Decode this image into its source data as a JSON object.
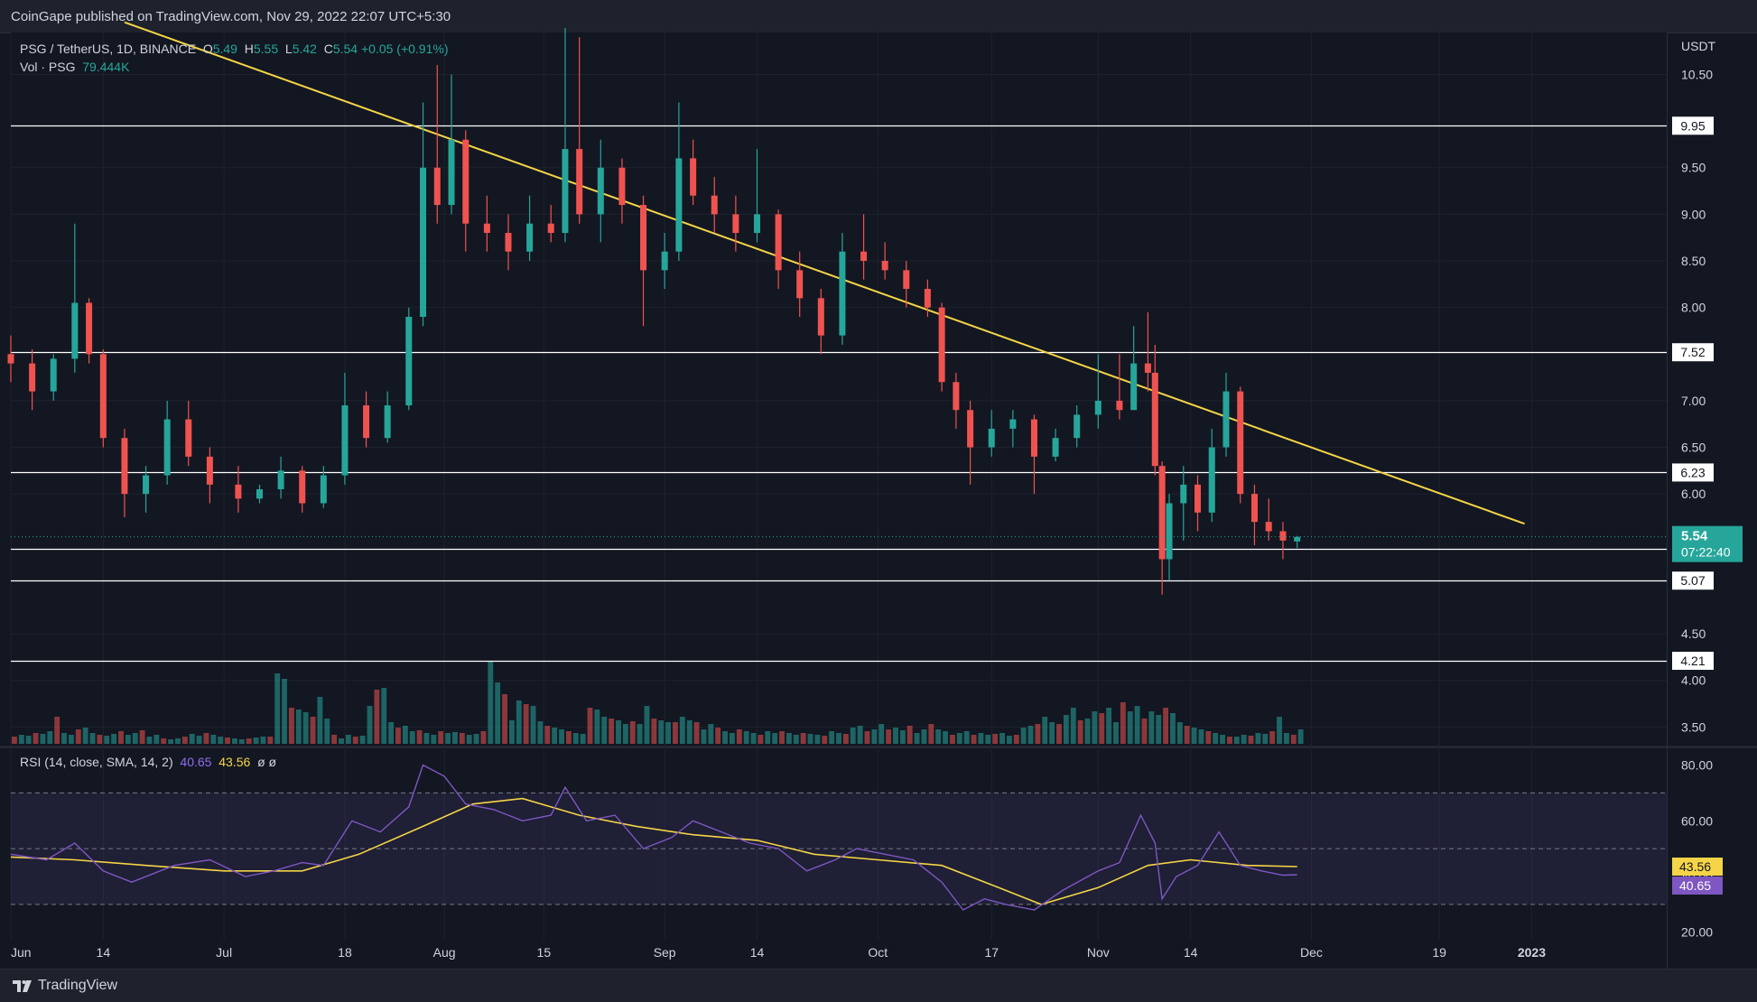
{
  "publisher": "CoinGape published on TradingView.com, Nov 29, 2022 22:07 UTC+5:30",
  "footer": {
    "brand": "TradingView"
  },
  "legend": {
    "symbol": "PSG / TetherUS, 1D, BINANCE",
    "o_label": "O",
    "o": "5.49",
    "h_label": "H",
    "h": "5.55",
    "l_label": "L",
    "l": "5.42",
    "c_label": "C",
    "c": "5.54",
    "change": "+0.05 (+0.91%)",
    "vol_label": "Vol · PSG",
    "vol": "79.444K",
    "rsi_label": "RSI (14, close, SMA, 14, 2)",
    "rsi": "40.65",
    "rsi_sma": "43.56",
    "rsi_extra": "ø  ø"
  },
  "colors": {
    "background": "#131722",
    "up": "#26a69a",
    "down": "#ef5350",
    "trendline": "#f5d547",
    "rsi": "#7e57c2",
    "rsi_sma": "#f5d547",
    "levels": "#ffffff"
  },
  "chart_data": [
    {
      "type": "candlestick",
      "currency": "USDT",
      "price_axis": [
        "10.50",
        "9.50",
        "9.00",
        "8.50",
        "8.00",
        "7.00",
        "6.50",
        "6.00",
        "4.50",
        "4.00",
        "3.50"
      ],
      "ylim": [
        3.3,
        10.95
      ],
      "time_axis": [
        "Jun",
        "14",
        "Jul",
        "18",
        "Aug",
        "15",
        "Sep",
        "14",
        "Oct",
        "17",
        "Nov",
        "14",
        "Dec",
        "19",
        "2023"
      ],
      "horizontal_levels": [
        "9.95",
        "7.52",
        "6.23",
        "5.41",
        "5.07",
        "4.21"
      ],
      "last_price": "5.54",
      "countdown": "07:22:40",
      "descending_trendline": {
        "start": [
          "2022-06-17",
          11.06
        ],
        "end": [
          "2022-12-31",
          5.68
        ]
      },
      "candles": [
        {
          "date": "2022-06-01",
          "o": 7.5,
          "h": 7.7,
          "l": 7.2,
          "c": 7.4
        },
        {
          "date": "2022-06-04",
          "o": 7.4,
          "h": 7.55,
          "l": 6.9,
          "c": 7.1
        },
        {
          "date": "2022-06-07",
          "o": 7.1,
          "h": 7.5,
          "l": 7.0,
          "c": 7.45
        },
        {
          "date": "2022-06-10",
          "o": 7.45,
          "h": 8.9,
          "l": 7.3,
          "c": 8.05
        },
        {
          "date": "2022-06-12",
          "o": 8.05,
          "h": 8.1,
          "l": 7.4,
          "c": 7.5
        },
        {
          "date": "2022-06-14",
          "o": 7.5,
          "h": 7.55,
          "l": 6.5,
          "c": 6.6
        },
        {
          "date": "2022-06-17",
          "o": 6.6,
          "h": 6.7,
          "l": 5.75,
          "c": 6.0
        },
        {
          "date": "2022-06-20",
          "o": 6.0,
          "h": 6.3,
          "l": 5.8,
          "c": 6.2
        },
        {
          "date": "2022-06-23",
          "o": 6.2,
          "h": 7.0,
          "l": 6.1,
          "c": 6.8
        },
        {
          "date": "2022-06-26",
          "o": 6.8,
          "h": 7.0,
          "l": 6.3,
          "c": 6.4
        },
        {
          "date": "2022-06-29",
          "o": 6.4,
          "h": 6.5,
          "l": 5.9,
          "c": 6.1
        },
        {
          "date": "2022-07-03",
          "o": 6.1,
          "h": 6.3,
          "l": 5.8,
          "c": 5.95
        },
        {
          "date": "2022-07-06",
          "o": 5.95,
          "h": 6.1,
          "l": 5.9,
          "c": 6.05
        },
        {
          "date": "2022-07-09",
          "o": 6.05,
          "h": 6.4,
          "l": 5.95,
          "c": 6.25
        },
        {
          "date": "2022-07-12",
          "o": 6.25,
          "h": 6.3,
          "l": 5.8,
          "c": 5.9
        },
        {
          "date": "2022-07-15",
          "o": 5.9,
          "h": 6.3,
          "l": 5.85,
          "c": 6.2
        },
        {
          "date": "2022-07-18",
          "o": 6.2,
          "h": 7.3,
          "l": 6.1,
          "c": 6.95
        },
        {
          "date": "2022-07-21",
          "o": 6.95,
          "h": 7.1,
          "l": 6.5,
          "c": 6.6
        },
        {
          "date": "2022-07-24",
          "o": 6.6,
          "h": 7.1,
          "l": 6.55,
          "c": 6.95
        },
        {
          "date": "2022-07-27",
          "o": 6.95,
          "h": 8.0,
          "l": 6.9,
          "c": 7.9
        },
        {
          "date": "2022-07-29",
          "o": 7.9,
          "h": 10.2,
          "l": 7.8,
          "c": 9.5
        },
        {
          "date": "2022-07-31",
          "o": 9.5,
          "h": 10.6,
          "l": 8.9,
          "c": 9.1
        },
        {
          "date": "2022-08-02",
          "o": 9.1,
          "h": 10.5,
          "l": 9.0,
          "c": 9.8
        },
        {
          "date": "2022-08-04",
          "o": 9.8,
          "h": 9.9,
          "l": 8.6,
          "c": 8.9
        },
        {
          "date": "2022-08-07",
          "o": 8.9,
          "h": 9.2,
          "l": 8.6,
          "c": 8.8
        },
        {
          "date": "2022-08-10",
          "o": 8.8,
          "h": 9.0,
          "l": 8.4,
          "c": 8.6
        },
        {
          "date": "2022-08-13",
          "o": 8.6,
          "h": 9.2,
          "l": 8.5,
          "c": 8.9
        },
        {
          "date": "2022-08-16",
          "o": 8.9,
          "h": 9.1,
          "l": 8.7,
          "c": 8.8
        },
        {
          "date": "2022-08-18",
          "o": 8.8,
          "h": 11.0,
          "l": 8.7,
          "c": 9.7
        },
        {
          "date": "2022-08-20",
          "o": 9.7,
          "h": 10.9,
          "l": 8.9,
          "c": 9.0
        },
        {
          "date": "2022-08-23",
          "o": 9.0,
          "h": 9.8,
          "l": 8.7,
          "c": 9.5
        },
        {
          "date": "2022-08-26",
          "o": 9.5,
          "h": 9.6,
          "l": 8.9,
          "c": 9.1
        },
        {
          "date": "2022-08-29",
          "o": 9.1,
          "h": 9.2,
          "l": 7.8,
          "c": 8.4
        },
        {
          "date": "2022-09-01",
          "o": 8.4,
          "h": 8.8,
          "l": 8.2,
          "c": 8.6
        },
        {
          "date": "2022-09-03",
          "o": 8.6,
          "h": 10.2,
          "l": 8.5,
          "c": 9.6
        },
        {
          "date": "2022-09-05",
          "o": 9.6,
          "h": 9.8,
          "l": 9.1,
          "c": 9.2
        },
        {
          "date": "2022-09-08",
          "o": 9.2,
          "h": 9.4,
          "l": 8.8,
          "c": 9.0
        },
        {
          "date": "2022-09-11",
          "o": 9.0,
          "h": 9.2,
          "l": 8.6,
          "c": 8.8
        },
        {
          "date": "2022-09-14",
          "o": 8.8,
          "h": 9.7,
          "l": 8.7,
          "c": 9.0
        },
        {
          "date": "2022-09-17",
          "o": 9.0,
          "h": 9.05,
          "l": 8.2,
          "c": 8.4
        },
        {
          "date": "2022-09-20",
          "o": 8.4,
          "h": 8.6,
          "l": 7.9,
          "c": 8.1
        },
        {
          "date": "2022-09-23",
          "o": 8.1,
          "h": 8.2,
          "l": 7.5,
          "c": 7.7
        },
        {
          "date": "2022-09-26",
          "o": 7.7,
          "h": 8.8,
          "l": 7.6,
          "c": 8.6
        },
        {
          "date": "2022-09-29",
          "o": 8.6,
          "h": 9.0,
          "l": 8.3,
          "c": 8.5
        },
        {
          "date": "2022-10-02",
          "o": 8.5,
          "h": 8.7,
          "l": 8.3,
          "c": 8.4
        },
        {
          "date": "2022-10-05",
          "o": 8.4,
          "h": 8.5,
          "l": 8.0,
          "c": 8.2
        },
        {
          "date": "2022-10-08",
          "o": 8.2,
          "h": 8.3,
          "l": 7.9,
          "c": 8.0
        },
        {
          "date": "2022-10-10",
          "o": 8.0,
          "h": 8.05,
          "l": 7.1,
          "c": 7.2
        },
        {
          "date": "2022-10-12",
          "o": 7.2,
          "h": 7.3,
          "l": 6.7,
          "c": 6.9
        },
        {
          "date": "2022-10-14",
          "o": 6.9,
          "h": 7.0,
          "l": 6.1,
          "c": 6.5
        },
        {
          "date": "2022-10-17",
          "o": 6.5,
          "h": 6.9,
          "l": 6.4,
          "c": 6.7
        },
        {
          "date": "2022-10-20",
          "o": 6.7,
          "h": 6.9,
          "l": 6.5,
          "c": 6.8
        },
        {
          "date": "2022-10-23",
          "o": 6.8,
          "h": 6.85,
          "l": 6.0,
          "c": 6.4
        },
        {
          "date": "2022-10-26",
          "o": 6.4,
          "h": 6.7,
          "l": 6.35,
          "c": 6.6
        },
        {
          "date": "2022-10-29",
          "o": 6.6,
          "h": 6.95,
          "l": 6.5,
          "c": 6.85
        },
        {
          "date": "2022-11-01",
          "o": 6.85,
          "h": 7.5,
          "l": 6.7,
          "c": 7.0
        },
        {
          "date": "2022-11-04",
          "o": 7.0,
          "h": 7.5,
          "l": 6.8,
          "c": 6.9
        },
        {
          "date": "2022-11-06",
          "o": 6.9,
          "h": 7.8,
          "l": 6.9,
          "c": 7.4
        },
        {
          "date": "2022-11-08",
          "o": 7.4,
          "h": 7.95,
          "l": 7.1,
          "c": 7.3
        },
        {
          "date": "2022-11-09",
          "o": 7.3,
          "h": 7.6,
          "l": 6.2,
          "c": 6.3
        },
        {
          "date": "2022-11-10",
          "o": 6.3,
          "h": 6.35,
          "l": 4.92,
          "c": 5.3
        },
        {
          "date": "2022-11-11",
          "o": 5.3,
          "h": 6.0,
          "l": 5.07,
          "c": 5.9
        },
        {
          "date": "2022-11-13",
          "o": 5.9,
          "h": 6.3,
          "l": 5.5,
          "c": 6.1
        },
        {
          "date": "2022-11-15",
          "o": 6.1,
          "h": 6.2,
          "l": 5.6,
          "c": 5.8
        },
        {
          "date": "2022-11-17",
          "o": 5.8,
          "h": 6.7,
          "l": 5.7,
          "c": 6.5
        },
        {
          "date": "2022-11-19",
          "o": 6.5,
          "h": 7.3,
          "l": 6.4,
          "c": 7.1
        },
        {
          "date": "2022-11-21",
          "o": 7.1,
          "h": 7.15,
          "l": 5.9,
          "c": 6.0
        },
        {
          "date": "2022-11-23",
          "o": 6.0,
          "h": 6.1,
          "l": 5.45,
          "c": 5.7
        },
        {
          "date": "2022-11-25",
          "o": 5.7,
          "h": 5.95,
          "l": 5.5,
          "c": 5.6
        },
        {
          "date": "2022-11-27",
          "o": 5.6,
          "h": 5.7,
          "l": 5.3,
          "c": 5.5
        },
        {
          "date": "2022-11-29",
          "o": 5.49,
          "h": 5.55,
          "l": 5.42,
          "c": 5.54
        }
      ],
      "volume": {
        "last": "79.444K"
      }
    },
    {
      "type": "line",
      "title": "RSI (14, close, SMA, 14, 2)",
      "y_axis": [
        "80.00",
        "60.00",
        "40.00",
        "20.00"
      ],
      "ylim": [
        17,
        86
      ],
      "bands": [
        70,
        50,
        30
      ],
      "series": [
        {
          "name": "RSI",
          "points": [
            [
              "2022-06-01",
              48
            ],
            [
              "2022-06-06",
              46
            ],
            [
              "2022-06-10",
              52
            ],
            [
              "2022-06-14",
              42
            ],
            [
              "2022-06-18",
              38
            ],
            [
              "2022-06-24",
              44
            ],
            [
              "2022-06-29",
              46
            ],
            [
              "2022-07-04",
              40
            ],
            [
              "2022-07-08",
              42
            ],
            [
              "2022-07-12",
              45
            ],
            [
              "2022-07-15",
              44
            ],
            [
              "2022-07-19",
              60
            ],
            [
              "2022-07-23",
              56
            ],
            [
              "2022-07-27",
              65
            ],
            [
              "2022-07-29",
              80
            ],
            [
              "2022-08-01",
              76
            ],
            [
              "2022-08-04",
              66
            ],
            [
              "2022-08-08",
              64
            ],
            [
              "2022-08-12",
              60
            ],
            [
              "2022-08-16",
              62
            ],
            [
              "2022-08-18",
              72
            ],
            [
              "2022-08-21",
              60
            ],
            [
              "2022-08-25",
              62
            ],
            [
              "2022-08-29",
              50
            ],
            [
              "2022-09-02",
              54
            ],
            [
              "2022-09-05",
              60
            ],
            [
              "2022-09-09",
              56
            ],
            [
              "2022-09-13",
              52
            ],
            [
              "2022-09-17",
              50
            ],
            [
              "2022-09-21",
              42
            ],
            [
              "2022-09-25",
              46
            ],
            [
              "2022-09-28",
              50
            ],
            [
              "2022-10-02",
              48
            ],
            [
              "2022-10-06",
              46
            ],
            [
              "2022-10-10",
              38
            ],
            [
              "2022-10-13",
              28
            ],
            [
              "2022-10-16",
              32
            ],
            [
              "2022-10-19",
              30
            ],
            [
              "2022-10-23",
              28
            ],
            [
              "2022-10-27",
              35
            ],
            [
              "2022-11-01",
              42
            ],
            [
              "2022-11-04",
              45
            ],
            [
              "2022-11-07",
              62
            ],
            [
              "2022-11-09",
              52
            ],
            [
              "2022-11-10",
              32
            ],
            [
              "2022-11-12",
              40
            ],
            [
              "2022-11-15",
              44
            ],
            [
              "2022-11-18",
              56
            ],
            [
              "2022-11-21",
              44
            ],
            [
              "2022-11-24",
              42
            ],
            [
              "2022-11-27",
              40.5
            ],
            [
              "2022-11-29",
              40.65
            ]
          ]
        },
        {
          "name": "RSI-based MA",
          "points": [
            [
              "2022-06-01",
              47
            ],
            [
              "2022-06-10",
              46
            ],
            [
              "2022-06-20",
              44
            ],
            [
              "2022-07-01",
              42
            ],
            [
              "2022-07-12",
              42
            ],
            [
              "2022-07-20",
              48
            ],
            [
              "2022-07-29",
              58
            ],
            [
              "2022-08-05",
              66
            ],
            [
              "2022-08-12",
              68
            ],
            [
              "2022-08-20",
              62
            ],
            [
              "2022-08-28",
              58
            ],
            [
              "2022-09-05",
              55
            ],
            [
              "2022-09-14",
              53
            ],
            [
              "2022-09-22",
              48
            ],
            [
              "2022-10-01",
              46
            ],
            [
              "2022-10-10",
              44
            ],
            [
              "2022-10-18",
              36
            ],
            [
              "2022-10-24",
              30
            ],
            [
              "2022-11-01",
              36
            ],
            [
              "2022-11-08",
              44
            ],
            [
              "2022-11-14",
              46
            ],
            [
              "2022-11-22",
              44
            ],
            [
              "2022-11-29",
              43.56
            ]
          ]
        }
      ]
    }
  ]
}
